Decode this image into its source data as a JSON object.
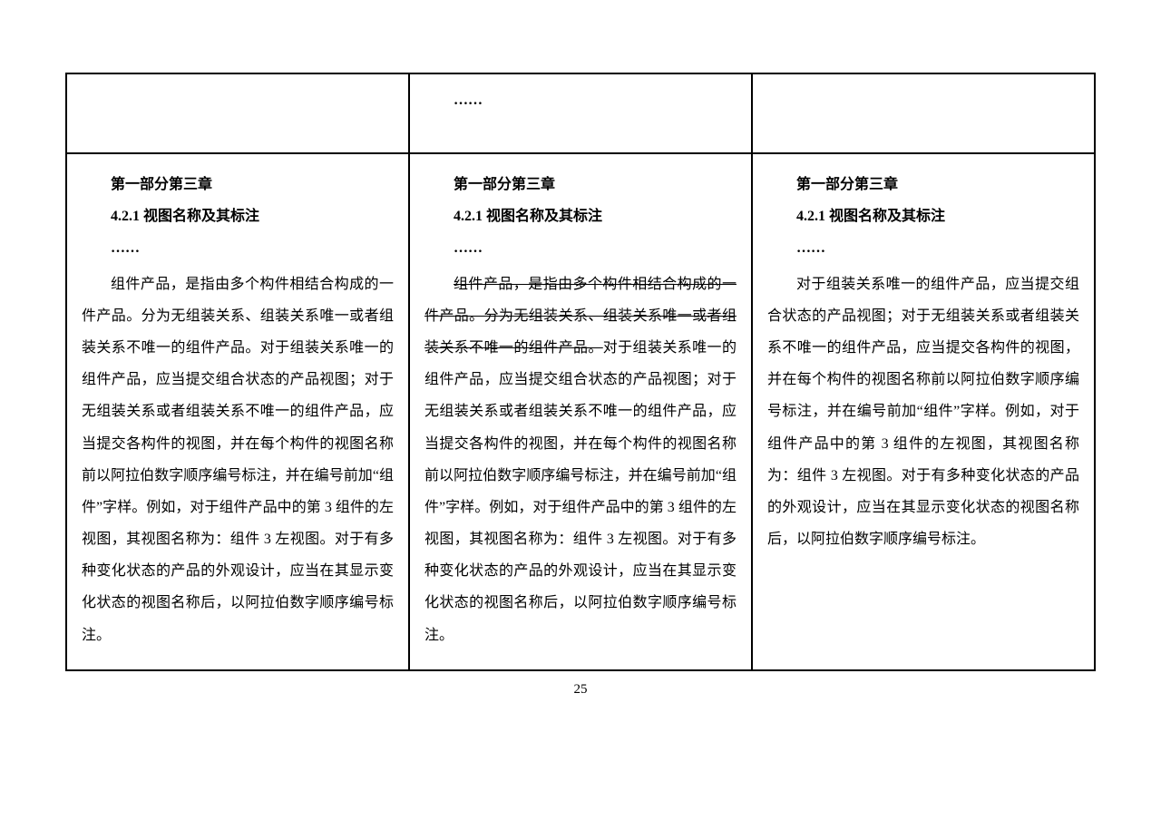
{
  "pageNumber": "25",
  "ellipsis": "……",
  "row1": {
    "col2_top": "……"
  },
  "columns": {
    "left": {
      "chapter": "第一部分第三章",
      "section": "4.2.1  视图名称及其标注",
      "ell": "……",
      "body": "组件产品，是指由多个构件相结合构成的一件产品。分为无组装关系、组装关系唯一或者组装关系不唯一的组件产品。对于组装关系唯一的组件产品，应当提交组合状态的产品视图；对于无组装关系或者组装关系不唯一的组件产品，应当提交各构件的视图，并在每个构件的视图名称前以阿拉伯数字顺序编号标注，并在编号前加“组件”字样。例如，对于组件产品中的第 3 组件的左视图，其视图名称为：组件 3 左视图。对于有多种变化状态的产品的外观设计，应当在其显示变化状态的视图名称后，以阿拉伯数字顺序编号标注。"
    },
    "mid": {
      "chapter": "第一部分第三章",
      "section": "4.2.1  视图名称及其标注",
      "ell": "……",
      "struck": "组件产品，是指由多个构件相结合构成的一件产品。分为无组装关系、组装关系唯一或者组装关系不唯一的组件产品。",
      "rest": "对于组装关系唯一的组件产品，应当提交组合状态的产品视图；对于无组装关系或者组装关系不唯一的组件产品，应当提交各构件的视图，并在每个构件的视图名称前以阿拉伯数字顺序编号标注，并在编号前加“组件”字样。例如，对于组件产品中的第 3 组件的左视图，其视图名称为：组件 3 左视图。对于有多种变化状态的产品的外观设计，应当在其显示变化状态的视图名称后，以阿拉伯数字顺序编号标注。"
    },
    "right": {
      "chapter": "第一部分第三章",
      "section": "4.2.1  视图名称及其标注",
      "ell": "……",
      "body": "对于组装关系唯一的组件产品，应当提交组合状态的产品视图；对于无组装关系或者组装关系不唯一的组件产品，应当提交各构件的视图，并在每个构件的视图名称前以阿拉伯数字顺序编号标注，并在编号前加“组件”字样。例如，对于组件产品中的第 3 组件的左视图，其视图名称为：组件 3 左视图。对于有多种变化状态的产品的外观设计，应当在其显示变化状态的视图名称后，以阿拉伯数字顺序编号标注。"
    }
  }
}
